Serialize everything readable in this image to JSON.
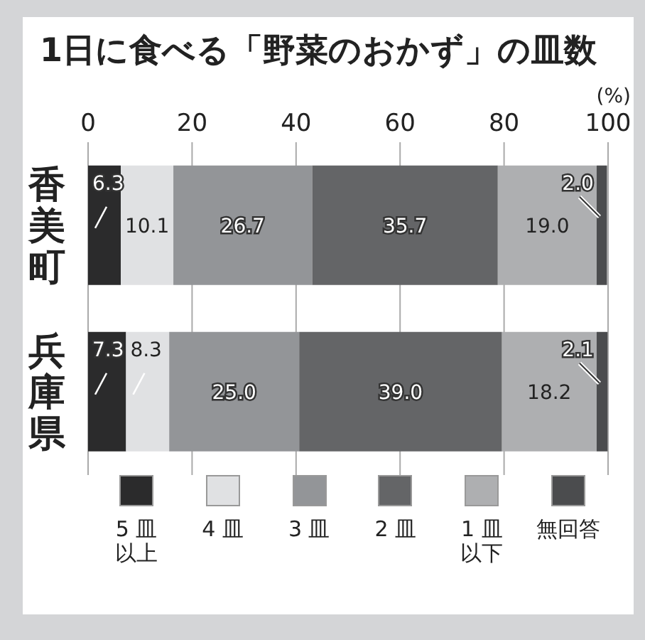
{
  "chart_data": {
    "type": "bar",
    "orientation": "horizontal",
    "stacked": true,
    "title": "1日に食べる「野菜のおかず」の皿数",
    "xlabel": "(%)",
    "categories": [
      "香美町",
      "兵庫県"
    ],
    "series": [
      {
        "name": "5 皿以上",
        "color": "#2b2b2c",
        "values": [
          6.3,
          7.3
        ],
        "value_labels": [
          "6.3",
          "7.3"
        ]
      },
      {
        "name": "4 皿",
        "color": "#e0e1e3",
        "values": [
          10.1,
          8.3
        ],
        "value_labels": [
          "10.1",
          "8.3"
        ]
      },
      {
        "name": "3 皿",
        "color": "#939598",
        "values": [
          26.7,
          25.0
        ],
        "value_labels": [
          "26.7",
          "25.0"
        ]
      },
      {
        "name": "2 皿",
        "color": "#646567",
        "values": [
          35.7,
          39.0
        ],
        "value_labels": [
          "35.7",
          "39.0"
        ]
      },
      {
        "name": "1 皿以下",
        "color": "#aeafb1",
        "values": [
          19.0,
          18.2
        ],
        "value_labels": [
          "19.0",
          "18.2"
        ]
      },
      {
        "name": "無回答",
        "color": "#4b4c4e",
        "values": [
          2.0,
          2.1
        ],
        "value_labels": [
          "2.0",
          "2.1"
        ]
      }
    ],
    "xlim": [
      0,
      100
    ],
    "xticks": [
      0,
      20,
      40,
      60,
      80,
      100
    ],
    "grid": "x",
    "legend": "bottom"
  }
}
